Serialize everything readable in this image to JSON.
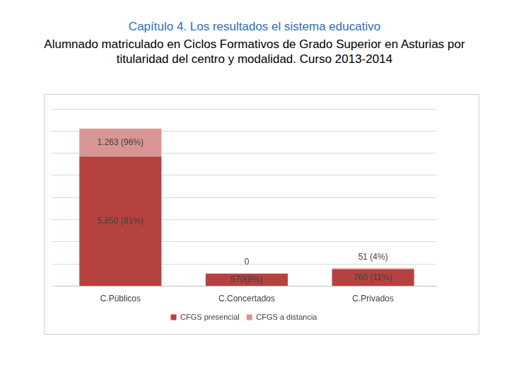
{
  "chart_data": {
    "type": "bar",
    "title": "Capítulo 4. Los resultados el sistema educativo",
    "subtitle": "Alumnado matriculado en Ciclos Formativos de Grado Superior en Asturias por titularidad del centro y modalidad. Curso 2013-2014",
    "categories": [
      "C.Públicos",
      "C.Concertados",
      "C.Privados"
    ],
    "series": [
      {
        "name": "CFGS presencial",
        "color": "#b5423f",
        "values": [
          5850,
          570,
          760
        ],
        "value_labels": [
          "5.850 (81%)",
          "570(8%)",
          "760 (11%)"
        ]
      },
      {
        "name": "CFGS a distancia",
        "color": "#d99594",
        "values": [
          1263,
          0,
          51
        ],
        "value_labels": [
          "1.263 (96%)",
          "0",
          "51 (4%)"
        ]
      }
    ],
    "stacked": true,
    "ylim": [
      0,
      8000
    ],
    "yticks": [
      0,
      1000,
      2000,
      3000,
      4000,
      5000,
      6000,
      7000,
      8000
    ],
    "grid": true,
    "legend": "bottom",
    "data_labels": true,
    "tick_labels": "x"
  }
}
